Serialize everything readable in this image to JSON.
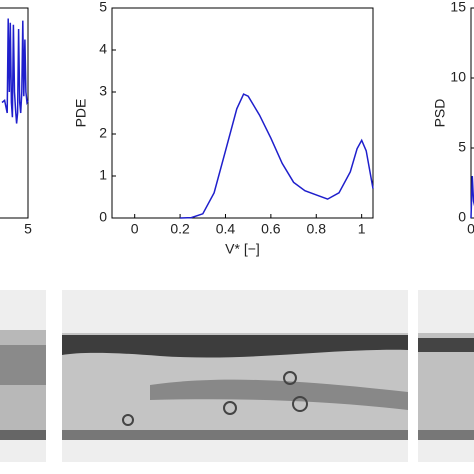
{
  "chart_data": [
    {
      "type": "line",
      "color": "#1f1fcc",
      "x": [
        4.5,
        4.55,
        4.6,
        4.62,
        4.64,
        4.66,
        4.68,
        4.7,
        4.72,
        4.74,
        4.76,
        4.78,
        4.8,
        4.82,
        4.84,
        4.86,
        4.88,
        4.9,
        4.92,
        4.94,
        4.96,
        4.98,
        5
      ],
      "values": [
        0.55,
        0.56,
        0.5,
        0.95,
        0.6,
        0.93,
        0.55,
        0.48,
        0.92,
        0.6,
        0.52,
        0.45,
        0.5,
        0.9,
        0.55,
        0.5,
        0.6,
        0.94,
        0.58,
        0.85,
        0.6,
        0.55,
        0.56
      ],
      "xlim": [
        0,
        5
      ],
      "ylim": [
        0,
        1
      ],
      "xticks": [
        5
      ],
      "yticks": []
    },
    {
      "type": "line",
      "color": "#1f1fcc",
      "xlabel": "V* [−]",
      "ylabel": "PDE",
      "x": [
        0.2,
        0.25,
        0.3,
        0.35,
        0.4,
        0.45,
        0.48,
        0.5,
        0.55,
        0.6,
        0.65,
        0.7,
        0.75,
        0.8,
        0.85,
        0.9,
        0.95,
        0.98,
        1.0,
        1.02,
        1.05
      ],
      "values": [
        0,
        0.01,
        0.1,
        0.6,
        1.6,
        2.6,
        2.95,
        2.9,
        2.45,
        1.9,
        1.3,
        0.85,
        0.65,
        0.55,
        0.45,
        0.6,
        1.1,
        1.65,
        1.85,
        1.6,
        0.7
      ],
      "xlim": [
        -0.1,
        1.05
      ],
      "ylim": [
        0,
        5
      ],
      "xticks": [
        0,
        0.2,
        0.4,
        0.6,
        0.8,
        1
      ],
      "yticks": [
        0,
        1,
        2,
        3,
        4,
        5
      ]
    },
    {
      "type": "line",
      "color": "#1f1fcc",
      "ylabel": "PSD",
      "x": [
        0,
        0.05,
        0.1,
        0.2,
        0.3
      ],
      "values": [
        0,
        3,
        1.2,
        0.5,
        0.3
      ],
      "xlim": [
        0,
        10
      ],
      "ylim": [
        0,
        15
      ],
      "xticks": [
        0
      ],
      "yticks": [
        0,
        5,
        10,
        15
      ]
    }
  ]
}
